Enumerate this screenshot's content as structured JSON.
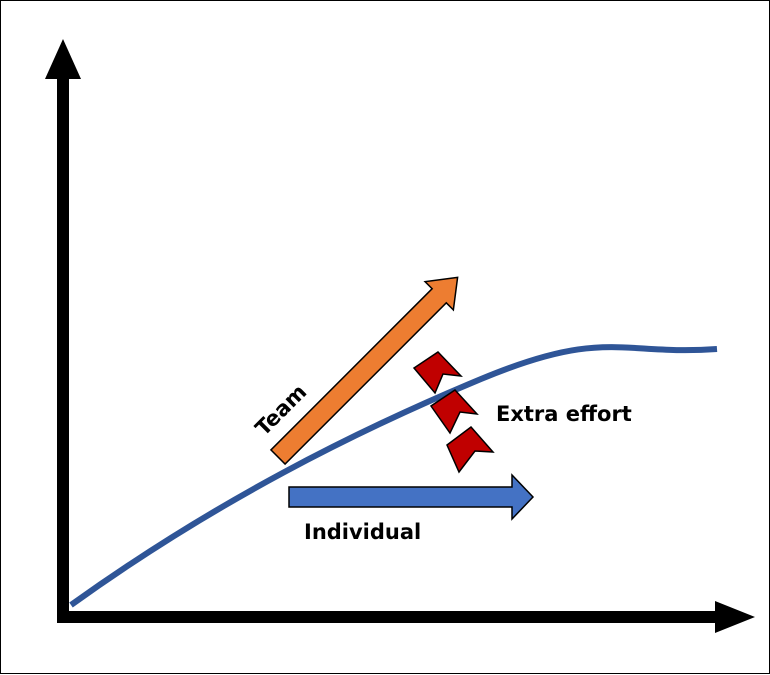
{
  "labels": {
    "team": "Team",
    "extra_effort": "Extra effort",
    "individual": "Individual"
  },
  "colors": {
    "axis": "#000000",
    "curve": "#2F5597",
    "team_arrow": "#ED7D31",
    "individual_arrow": "#4472C4",
    "chevron": "#C00000",
    "outline": "#000000"
  }
}
